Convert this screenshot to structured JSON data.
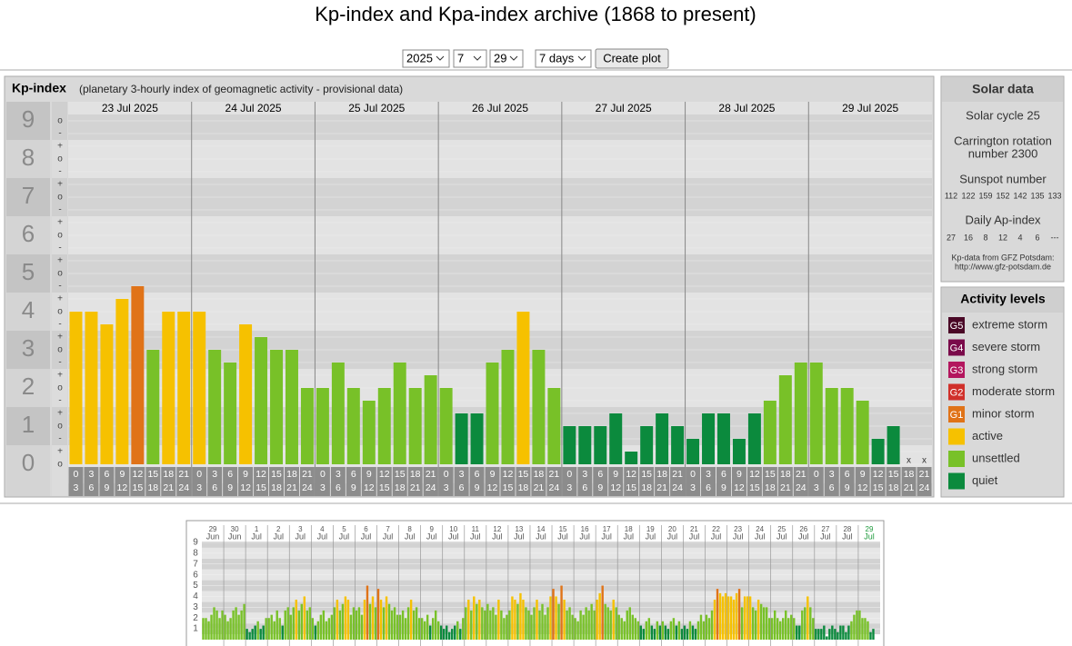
{
  "title": "Kp-index and Kpa-index archive (1868 to present)",
  "form": {
    "year": "2025",
    "month": "7",
    "day": "29",
    "range": "7 days",
    "button": "Create plot"
  },
  "solar_data": {
    "title": "Solar data",
    "cycle": "Solar cycle 25",
    "carrington": [
      "Carrington rotation",
      "number 2300"
    ],
    "sunspot_label": "Sunspot number",
    "sunspot_numbers": [
      112,
      122,
      159,
      152,
      142,
      135,
      133
    ],
    "ap_label": "Daily Ap-index",
    "ap_values": [
      27,
      16,
      8,
      12,
      4,
      6,
      "---"
    ],
    "source": [
      "Kp-data from GFZ Potsdam:",
      "http://www.gfz-potsdam.de"
    ]
  },
  "chart_data": [
    {
      "type": "bar",
      "title": "Kp-index",
      "subtitle": "(planetary 3-hourly index of geomagnetic activity - provisional data)",
      "categories": [
        "23 Jul 2025",
        "24 Jul 2025",
        "25 Jul 2025",
        "26 Jul 2025",
        "27 Jul 2025",
        "28 Jul 2025",
        "29 Jul 2025"
      ],
      "hour_labels": [
        [
          "0",
          "3"
        ],
        [
          "3",
          "6"
        ],
        [
          "6",
          "9"
        ],
        [
          "9",
          "12"
        ],
        [
          "12",
          "15"
        ],
        [
          "15",
          "18"
        ],
        [
          "18",
          "21"
        ],
        [
          "21",
          "24"
        ]
      ],
      "values": [
        [
          4,
          4,
          3.667,
          4.333,
          4.667,
          3,
          4,
          4
        ],
        [
          4,
          3,
          2.667,
          3.667,
          3.333,
          3,
          3,
          2
        ],
        [
          2,
          2.667,
          2,
          1.667,
          2,
          2.667,
          2,
          2.333
        ],
        [
          2,
          1.333,
          1.333,
          2.667,
          3,
          4,
          3,
          2
        ],
        [
          1,
          1,
          1,
          1.333,
          0.333,
          1,
          1.333,
          1
        ],
        [
          0.667,
          1.333,
          1.333,
          0.667,
          1.333,
          1.667,
          2.333,
          2.667
        ],
        [
          2.667,
          2,
          2,
          1.667,
          0.667,
          1,
          null,
          null
        ]
      ],
      "missing_label": "x",
      "ylim": [
        0,
        9.5
      ],
      "yticks": [
        0,
        1,
        2,
        3,
        4,
        5,
        6,
        7,
        8,
        9
      ],
      "ytick_marks": [
        "-",
        "o",
        "+"
      ],
      "grid": true,
      "legend": {
        "title": "Activity levels",
        "levels": [
          {
            "code": "G5",
            "name": "extreme storm",
            "color": "#4a0826",
            "from": 8.5
          },
          {
            "code": "G4",
            "name": "severe storm",
            "color": "#7a0a4a",
            "from": 7.5
          },
          {
            "code": "G3",
            "name": "strong storm",
            "color": "#b3165e",
            "from": 6.5
          },
          {
            "code": "G2",
            "name": "moderate storm",
            "color": "#d0302a",
            "from": 5.5
          },
          {
            "code": "G1",
            "name": "minor storm",
            "color": "#e07318",
            "from": 4.5
          },
          {
            "name": "active",
            "color": "#f6c100",
            "from": 3.5
          },
          {
            "name": "unsettled",
            "color": "#78c128",
            "from": 1.5
          },
          {
            "name": "quiet",
            "color": "#0b8a3d",
            "from": 0
          }
        ]
      }
    },
    {
      "type": "bar",
      "categories": [
        [
          "29",
          "Jun"
        ],
        [
          "30",
          "Jun"
        ],
        [
          "1",
          "Jul"
        ],
        [
          "2",
          "Jul"
        ],
        [
          "3",
          "Jul"
        ],
        [
          "4",
          "Jul"
        ],
        [
          "5",
          "Jul"
        ],
        [
          "6",
          "Jul"
        ],
        [
          "7",
          "Jul"
        ],
        [
          "8",
          "Jul"
        ],
        [
          "9",
          "Jul"
        ],
        [
          "10",
          "Jul"
        ],
        [
          "11",
          "Jul"
        ],
        [
          "12",
          "Jul"
        ],
        [
          "13",
          "Jul"
        ],
        [
          "14",
          "Jul"
        ],
        [
          "15",
          "Jul"
        ],
        [
          "16",
          "Jul"
        ],
        [
          "17",
          "Jul"
        ],
        [
          "18",
          "Jul"
        ],
        [
          "19",
          "Jul"
        ],
        [
          "20",
          "Jul"
        ],
        [
          "21",
          "Jul"
        ],
        [
          "22",
          "Jul"
        ],
        [
          "23",
          "Jul"
        ],
        [
          "24",
          "Jul"
        ],
        [
          "25",
          "Jul"
        ],
        [
          "26",
          "Jul"
        ],
        [
          "27",
          "Jul"
        ],
        [
          "28",
          "Jul"
        ],
        [
          "29",
          "Jul"
        ]
      ],
      "values": [
        [
          2,
          2,
          1.7,
          2.3,
          3,
          2.7,
          2,
          2.7
        ],
        [
          2.3,
          1.7,
          2,
          2.7,
          3,
          2.3,
          2.7,
          3.3
        ],
        [
          1,
          0.7,
          1,
          1.3,
          1.7,
          1,
          1.3,
          2
        ],
        [
          2,
          2.3,
          1.7,
          2.7,
          2,
          1.3,
          2.7,
          3
        ],
        [
          2.3,
          3,
          3.7,
          2.7,
          3.3,
          4,
          2.7,
          3
        ],
        [
          2,
          1.3,
          1.7,
          2.3,
          2.7,
          1.7,
          2,
          2.3
        ],
        [
          3,
          3.7,
          2.7,
          3.3,
          4,
          3.7,
          2.3,
          3
        ],
        [
          2.7,
          3,
          2.3,
          3.7,
          5,
          3.3,
          4,
          3
        ],
        [
          4.7,
          3.7,
          3,
          4,
          3.3,
          2.7,
          3,
          2.3
        ],
        [
          2.3,
          2.7,
          2,
          3,
          3.7,
          2.7,
          3,
          2
        ],
        [
          2,
          1.7,
          2.3,
          1.3,
          2,
          2.7,
          1.7,
          1.3
        ],
        [
          1,
          1.3,
          0.7,
          1,
          1.3,
          1.7,
          1,
          2
        ],
        [
          3,
          3.7,
          2.7,
          4,
          3.3,
          3.7,
          3,
          2.7
        ],
        [
          3.3,
          2.7,
          3,
          2.3,
          3.7,
          2.7,
          2,
          2.3
        ],
        [
          2.7,
          4,
          3.7,
          3.3,
          4.3,
          3.7,
          3,
          2.7
        ],
        [
          2.3,
          3,
          3.7,
          2.7,
          3.3,
          2.3,
          3,
          4
        ],
        [
          4.7,
          4,
          3.3,
          5,
          3.7,
          2.7,
          3,
          2.3
        ],
        [
          2,
          1.7,
          2.7,
          2.3,
          3,
          2.7,
          3.3,
          2.7
        ],
        [
          3.7,
          4.3,
          5,
          3.3,
          3,
          2.7,
          3.7,
          3
        ],
        [
          2.3,
          2,
          1.7,
          2.7,
          3,
          2.3,
          2,
          1.7
        ],
        [
          1.3,
          1,
          1.7,
          2,
          1.3,
          1,
          1.7,
          1.3
        ],
        [
          1.7,
          1.3,
          1,
          1.7,
          2,
          1.3,
          1.7,
          1
        ],
        [
          1.3,
          1,
          1.7,
          1.3,
          1,
          1.7,
          2.3,
          1.7
        ],
        [
          2.3,
          2,
          2.7,
          3.7,
          4.7,
          4.3,
          4,
          4.3
        ],
        [
          4,
          4,
          3.7,
          4.3,
          4.7,
          3,
          4,
          4
        ],
        [
          4,
          3,
          2.7,
          3.7,
          3.3,
          3,
          3,
          2
        ],
        [
          2,
          2.7,
          2,
          1.7,
          2,
          2.7,
          2,
          2.3
        ],
        [
          2,
          1.3,
          1.3,
          2.7,
          3,
          4,
          3,
          2
        ],
        [
          1,
          1,
          1,
          1.3,
          0.3,
          1,
          1.3,
          1
        ],
        [
          0.7,
          1.3,
          1.3,
          0.7,
          1.3,
          1.7,
          2.3,
          2.7
        ],
        [
          2.7,
          2,
          2,
          1.7,
          0.7,
          1,
          null,
          null
        ]
      ],
      "ylim": [
        0,
        9.5
      ],
      "yticks": [
        1,
        2,
        3,
        4,
        5,
        6,
        7,
        8,
        9
      ],
      "current_color": "#1e9a3c"
    }
  ]
}
